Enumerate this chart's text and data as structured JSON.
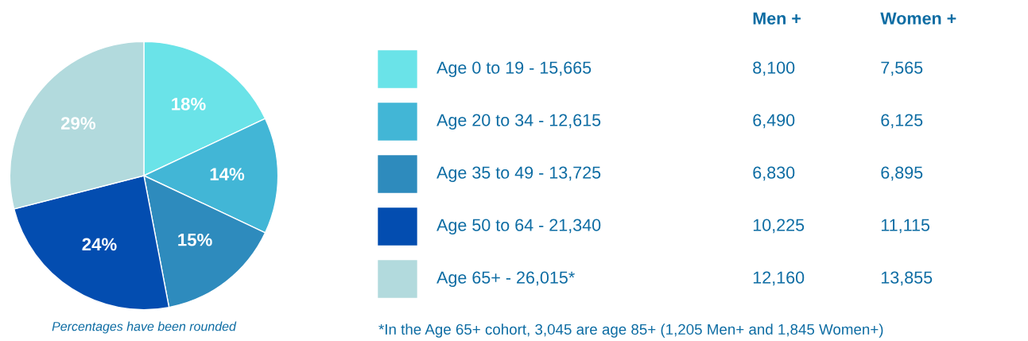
{
  "chart_data": [
    {
      "type": "pie",
      "categories": [
        "Age 0 to 19 - 15,665",
        "Age 20 to 34 - 12,615",
        "Age 35 to 49 - 13,725",
        "Age 50 to 64 - 21,340",
        "Age 65+ - 26,015*"
      ],
      "values": [
        18,
        14,
        15,
        24,
        29
      ],
      "colors": [
        "#6ae3e8",
        "#42b6d6",
        "#2e8bbd",
        "#034db0",
        "#b2dadd"
      ],
      "value_labels": [
        "18%",
        "14%",
        "15%",
        "24%",
        "29%"
      ],
      "legend": "right",
      "annotations": [
        "Percentages have been rounded"
      ]
    },
    {
      "type": "other",
      "annotations": [
        "Men +",
        "Women +",
        "8,100",
        "7,565",
        "6,490",
        "6,125",
        "6,830",
        "6,895",
        "10,225",
        "11,115",
        "12,160",
        "13,855",
        "*In the Age 65+ cohort, 3,045 are age 85+ (1,205 Men+ and 1,845 Women+)"
      ]
    }
  ]
}
